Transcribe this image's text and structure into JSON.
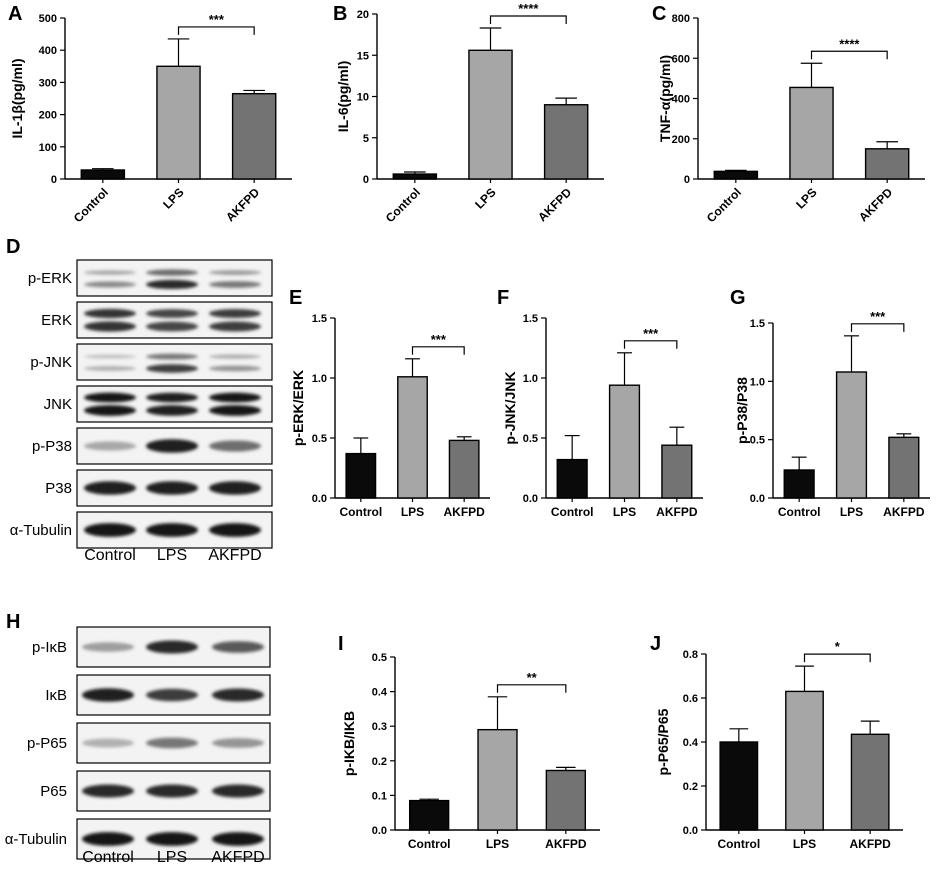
{
  "blots": [
    {
      "letter": "D",
      "rows": [
        {
          "label": "p-ERK",
          "style": "doubleTop",
          "intensity": [
            0.35,
            0.85,
            0.45
          ]
        },
        {
          "label": "ERK",
          "style": "double",
          "intensity": [
            0.8,
            0.7,
            0.75
          ]
        },
        {
          "label": "p-JNK",
          "style": "doubleTop",
          "intensity": [
            0.15,
            0.75,
            0.3
          ]
        },
        {
          "label": "JNK",
          "style": "double",
          "intensity": [
            0.95,
            0.9,
            0.95
          ]
        },
        {
          "label": "p-P38",
          "style": "single",
          "intensity": [
            0.2,
            0.9,
            0.5
          ]
        },
        {
          "label": "P38",
          "style": "single",
          "intensity": [
            0.9,
            0.9,
            0.9
          ]
        },
        {
          "label": "α-Tubulin",
          "style": "single",
          "intensity": [
            0.95,
            0.95,
            0.95
          ]
        }
      ],
      "categories": [
        "Control",
        "LPS",
        "AKFPD"
      ]
    },
    {
      "letter": "H",
      "rows": [
        {
          "label": "p-IκB",
          "style": "single",
          "intensity": [
            0.25,
            0.85,
            0.6
          ]
        },
        {
          "label": "IκB",
          "style": "single",
          "intensity": [
            0.9,
            0.75,
            0.85
          ]
        },
        {
          "label": "p-P65",
          "style": "single",
          "intensity": [
            0.15,
            0.45,
            0.3
          ]
        },
        {
          "label": "P65",
          "style": "single",
          "intensity": [
            0.85,
            0.85,
            0.85
          ]
        },
        {
          "label": "α-Tubulin",
          "style": "single",
          "intensity": [
            0.95,
            0.95,
            0.95
          ]
        }
      ],
      "categories": [
        "Control",
        "LPS",
        "AKFPD"
      ]
    }
  ],
  "chart_data": [
    {
      "letter": "A",
      "type": "bar",
      "categories": [
        "Control",
        "LPS",
        "AKFPD"
      ],
      "values": [
        28,
        350,
        265
      ],
      "errors": [
        4,
        85,
        10
      ],
      "ylabel": "IL-1β(pg/ml)",
      "ylim": [
        0,
        500
      ],
      "yticks": [
        "0",
        "100",
        "200",
        "300",
        "400",
        "500"
      ],
      "colors": [
        "#0a0a0a",
        "#a6a6a6",
        "#737373"
      ],
      "significance": {
        "from": 1,
        "to": 2,
        "label": "***"
      }
    },
    {
      "letter": "B",
      "type": "bar",
      "categories": [
        "Control",
        "LPS",
        "AKFPD"
      ],
      "values": [
        0.6,
        15.6,
        9.0
      ],
      "errors": [
        0.25,
        2.7,
        0.8
      ],
      "ylabel": "IL-6(pg/ml)",
      "ylim": [
        0,
        20
      ],
      "yticks": [
        "0",
        "5",
        "10",
        "15",
        "20"
      ],
      "colors": [
        "#0a0a0a",
        "#a6a6a6",
        "#737373"
      ],
      "significance": {
        "from": 1,
        "to": 2,
        "label": "****"
      }
    },
    {
      "letter": "C",
      "type": "bar",
      "categories": [
        "Control",
        "LPS",
        "AKFPD"
      ],
      "values": [
        38,
        455,
        150
      ],
      "errors": [
        5,
        120,
        35
      ],
      "ylabel": "TNF-α(pg/ml)",
      "ylim": [
        0,
        800
      ],
      "yticks": [
        "0",
        "200",
        "400",
        "600",
        "800"
      ],
      "colors": [
        "#0a0a0a",
        "#a6a6a6",
        "#737373"
      ],
      "significance": {
        "from": 1,
        "to": 2,
        "label": "****"
      }
    },
    {
      "letter": "E",
      "type": "bar",
      "categories": [
        "Control",
        "LPS",
        "AKFPD"
      ],
      "values": [
        0.37,
        1.01,
        0.48
      ],
      "errors": [
        0.13,
        0.15,
        0.03
      ],
      "ylabel": "p-ERK/ERK",
      "ylim": [
        0,
        1.5
      ],
      "yticks": [
        "0.0",
        "0.5",
        "1.0",
        "1.5"
      ],
      "colors": [
        "#0a0a0a",
        "#a6a6a6",
        "#737373"
      ],
      "significance": {
        "from": 1,
        "to": 2,
        "label": "***"
      }
    },
    {
      "letter": "F",
      "type": "bar",
      "categories": [
        "Control",
        "LPS",
        "AKFPD"
      ],
      "values": [
        0.32,
        0.94,
        0.44
      ],
      "errors": [
        0.2,
        0.27,
        0.15
      ],
      "ylabel": "p-JNK/JNK",
      "ylim": [
        0,
        1.5
      ],
      "yticks": [
        "0.0",
        "0.5",
        "1.0",
        "1.5"
      ],
      "colors": [
        "#0a0a0a",
        "#a6a6a6",
        "#737373"
      ],
      "significance": {
        "from": 1,
        "to": 2,
        "label": "***"
      }
    },
    {
      "letter": "G",
      "type": "bar",
      "categories": [
        "Control",
        "LPS",
        "AKFPD"
      ],
      "values": [
        0.24,
        1.08,
        0.52
      ],
      "errors": [
        0.11,
        0.31,
        0.03
      ],
      "ylabel": "p-P38/P38",
      "ylim": [
        0,
        1.5
      ],
      "yticks": [
        "0.0",
        "0.5",
        "1.0",
        "1.5"
      ],
      "colors": [
        "#0a0a0a",
        "#a6a6a6",
        "#737373"
      ],
      "significance": {
        "from": 1,
        "to": 2,
        "label": "***"
      }
    },
    {
      "letter": "I",
      "type": "bar",
      "categories": [
        "Control",
        "LPS",
        "AKFPD"
      ],
      "values": [
        0.085,
        0.29,
        0.172
      ],
      "errors": [
        0.004,
        0.095,
        0.009
      ],
      "ylabel": "p-IKB/IKB",
      "ylim": [
        0,
        0.5
      ],
      "yticks": [
        "0.0",
        "0.1",
        "0.2",
        "0.3",
        "0.4",
        "0.5"
      ],
      "colors": [
        "#0a0a0a",
        "#a6a6a6",
        "#737373"
      ],
      "significance": {
        "from": 1,
        "to": 2,
        "label": "**"
      }
    },
    {
      "letter": "J",
      "type": "bar",
      "categories": [
        "Control",
        "LPS",
        "AKFPD"
      ],
      "values": [
        0.4,
        0.63,
        0.435
      ],
      "errors": [
        0.06,
        0.115,
        0.06
      ],
      "ylabel": "p-P65/P65",
      "ylim": [
        0,
        0.8
      ],
      "yticks": [
        "0.0",
        "0.2",
        "0.4",
        "0.6",
        "0.8"
      ],
      "colors": [
        "#0a0a0a",
        "#a6a6a6",
        "#737373"
      ],
      "significance": {
        "from": 1,
        "to": 2,
        "label": "*"
      }
    }
  ]
}
